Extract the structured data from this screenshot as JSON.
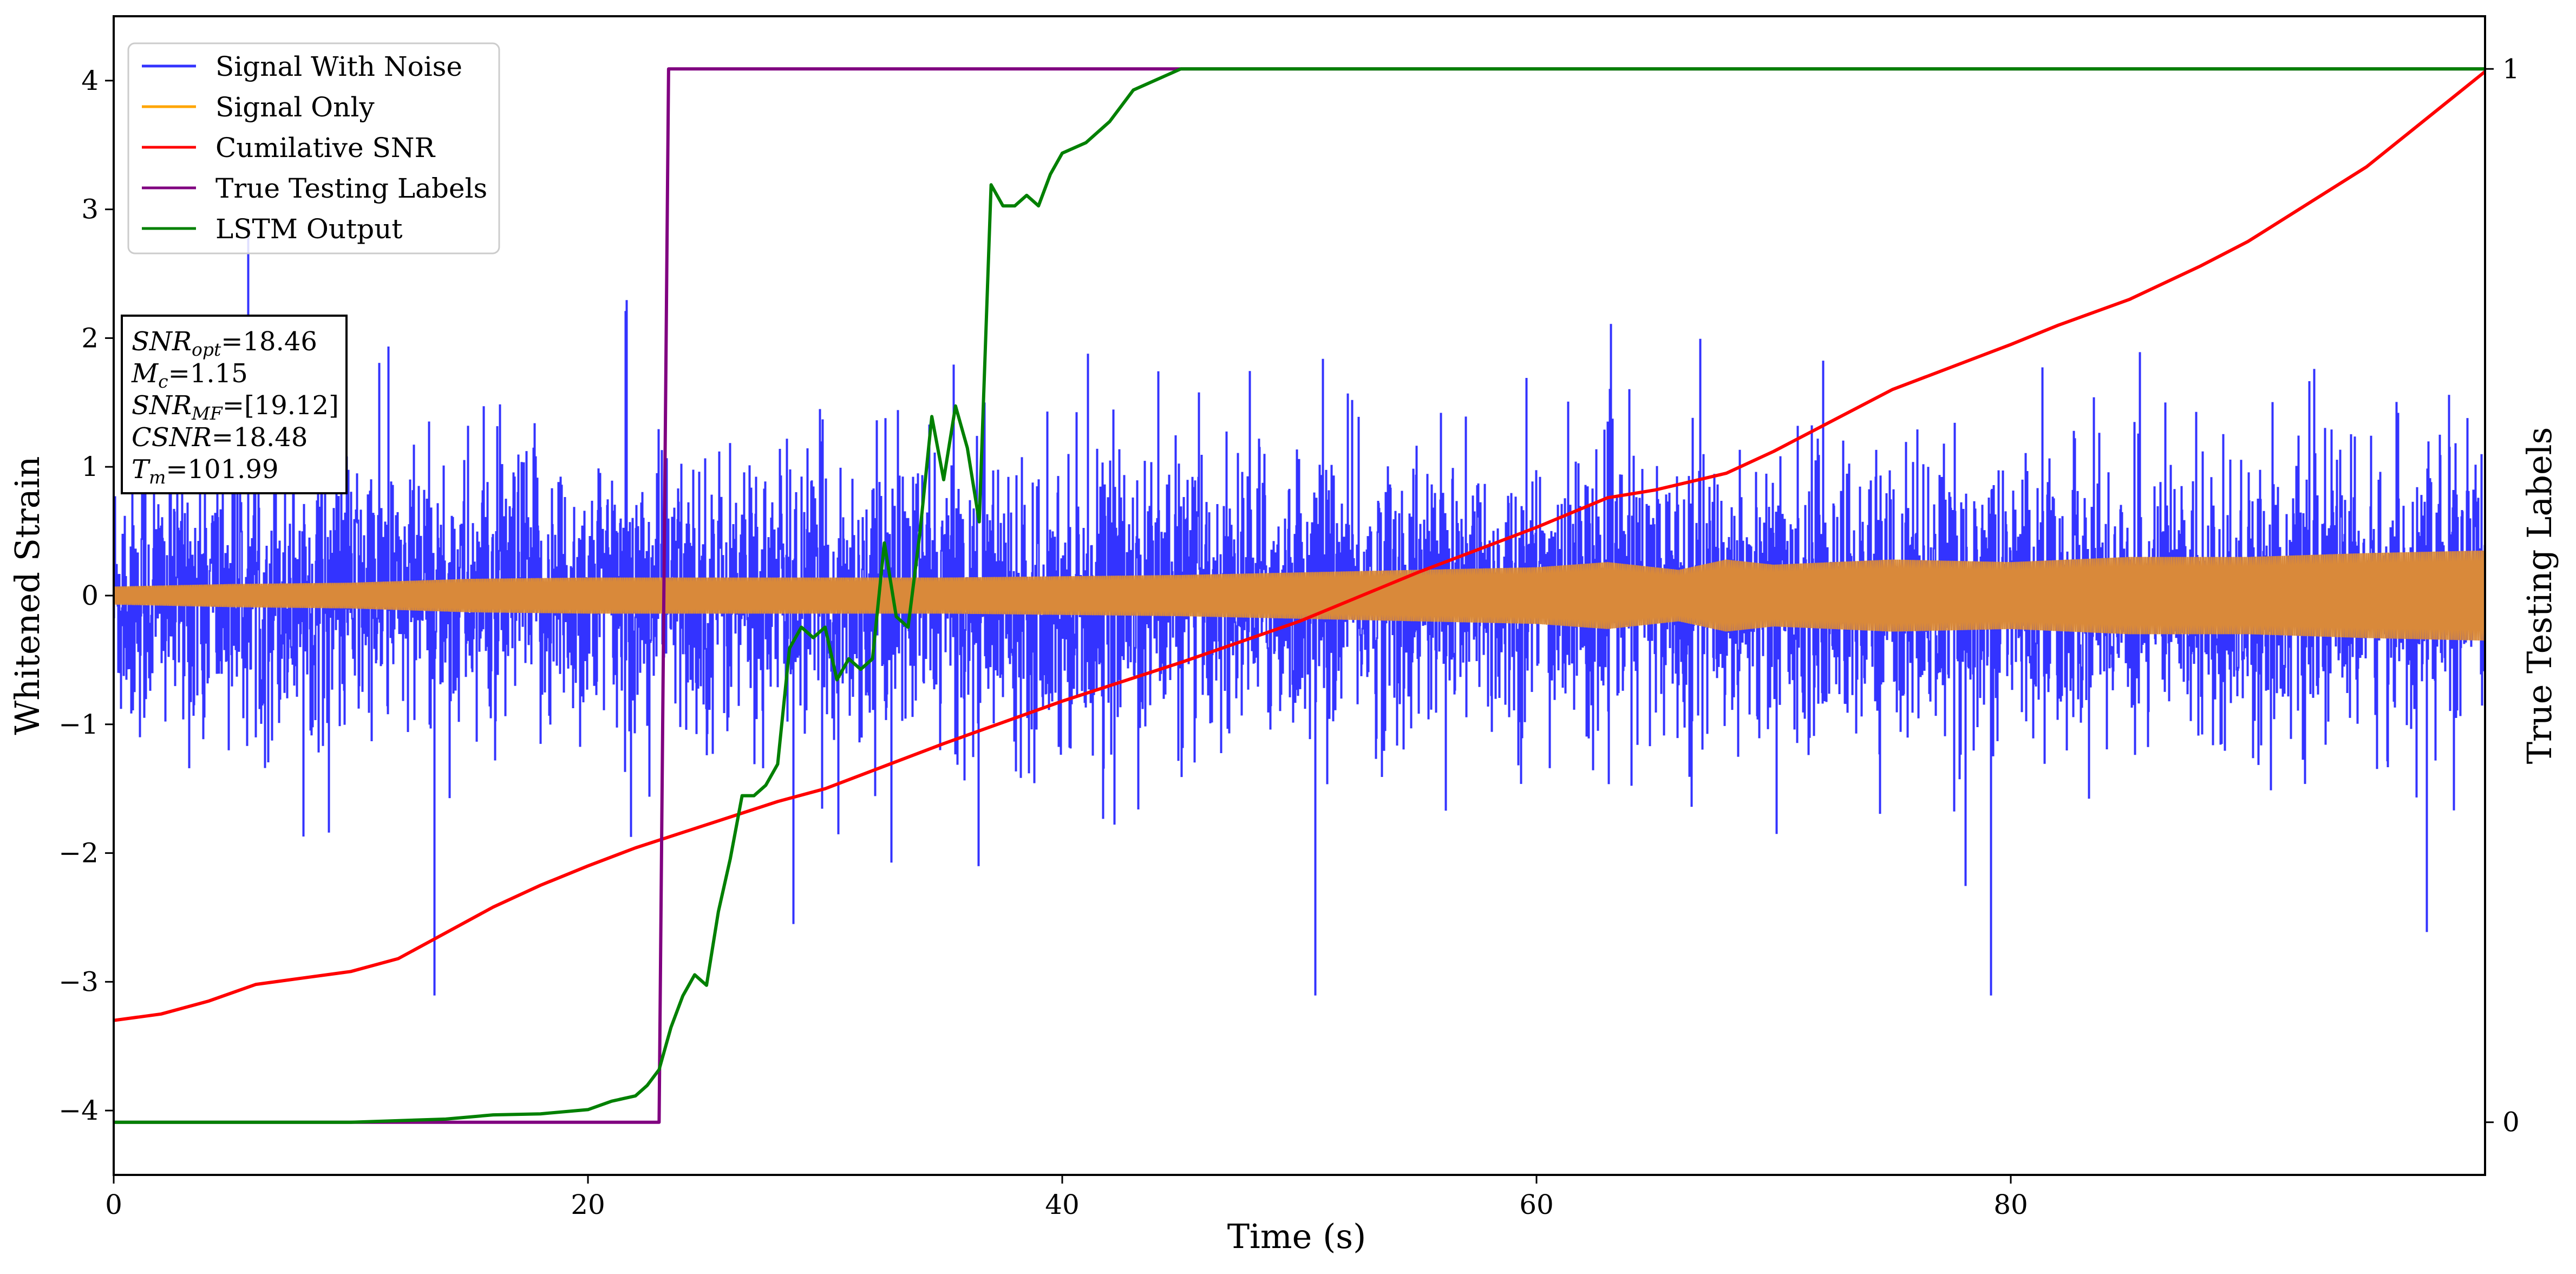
{
  "chart_data": {
    "type": "line",
    "xlabel": "Time (s)",
    "ylabel": "Whitened Strain",
    "y2label": "True Testing Labels",
    "xlim": [
      0,
      100
    ],
    "ylim": [
      -4.5,
      4.5
    ],
    "y2lim": [
      -0.05,
      1.05
    ],
    "xticks": [
      0,
      20,
      40,
      60,
      80
    ],
    "yticks": [
      -4,
      -3,
      -2,
      -1,
      0,
      1,
      2,
      3,
      4
    ],
    "y2ticks": [
      0,
      1
    ],
    "grid": false,
    "legend": {
      "placement": "top-left",
      "entries": [
        {
          "label": "Signal With Noise",
          "color": "#3333ff"
        },
        {
          "label": "Signal Only",
          "color": "#ffa500"
        },
        {
          "label": "Cumilative SNR",
          "color": "#ff0000"
        },
        {
          "label": "True Testing Labels",
          "color": "#800080"
        },
        {
          "label": "LSTM Output",
          "color": "#008000"
        }
      ]
    },
    "annotation": {
      "placement": "upper-left",
      "lines": [
        {
          "var": "SNR",
          "sub": "opt",
          "value": "=18.46"
        },
        {
          "var": "M",
          "sub": "c",
          "value": "=1.15"
        },
        {
          "var": "SNR",
          "sub": "MF",
          "value": "=[19.12]"
        },
        {
          "var": "CSNR",
          "sub": "",
          "value": "=18.48"
        },
        {
          "var": "T",
          "sub": "m",
          "value": "=101.99"
        }
      ]
    },
    "series": [
      {
        "name": "Signal With Noise",
        "axis": "left",
        "color": "#3333ff",
        "style": "dense-noise",
        "approx_std": 0.55,
        "approx_range": [
          -3.1,
          4.1
        ],
        "x_range": [
          0,
          100
        ]
      },
      {
        "name": "Signal Only",
        "axis": "left",
        "color": "#d9893a",
        "style": "envelope",
        "x": [
          0,
          5,
          10,
          15,
          20,
          25,
          30,
          35,
          40,
          45,
          50,
          55,
          60,
          63,
          66,
          68,
          70,
          75,
          80,
          85,
          90,
          95,
          100
        ],
        "envelope": [
          0.07,
          0.09,
          0.1,
          0.13,
          0.14,
          0.14,
          0.14,
          0.14,
          0.15,
          0.16,
          0.18,
          0.2,
          0.22,
          0.26,
          0.2,
          0.28,
          0.24,
          0.28,
          0.26,
          0.3,
          0.3,
          0.33,
          0.35
        ]
      },
      {
        "name": "Cumilative SNR",
        "axis": "left",
        "color": "#ff0000",
        "x": [
          0,
          2,
          4,
          6,
          8,
          10,
          12,
          14,
          16,
          18,
          20,
          22,
          25,
          28,
          30,
          35,
          40,
          45,
          50,
          55,
          60,
          63,
          65,
          68,
          70,
          75,
          80,
          82,
          85,
          88,
          90,
          95,
          100
        ],
        "y": [
          -3.3,
          -3.25,
          -3.15,
          -3.02,
          -2.97,
          -2.92,
          -2.82,
          -2.62,
          -2.42,
          -2.25,
          -2.1,
          -1.96,
          -1.78,
          -1.6,
          -1.5,
          -1.15,
          -0.82,
          -0.52,
          -0.2,
          0.18,
          0.53,
          0.76,
          0.82,
          0.95,
          1.12,
          1.6,
          1.95,
          2.1,
          2.3,
          2.56,
          2.75,
          3.33,
          4.07
        ]
      },
      {
        "name": "True Testing Labels",
        "axis": "right",
        "color": "#800080",
        "x": [
          0,
          23.0,
          23.4,
          100
        ],
        "y": [
          0,
          0,
          1,
          1
        ]
      },
      {
        "name": "LSTM Output",
        "axis": "right",
        "color": "#008000",
        "x": [
          0,
          10,
          14,
          16,
          18,
          20,
          21,
          22,
          22.5,
          23,
          23.5,
          24,
          24.5,
          25,
          25.5,
          26,
          26.5,
          27,
          27.5,
          28,
          28.5,
          29,
          29.5,
          30,
          30.5,
          31,
          31.5,
          32,
          32.5,
          33,
          33.5,
          34,
          34.5,
          35,
          35.5,
          36,
          36.5,
          37,
          37.5,
          38,
          38.5,
          39,
          39.5,
          40,
          41,
          42,
          43,
          44,
          45,
          46,
          47,
          48,
          49,
          50,
          100
        ],
        "y": [
          0.0,
          0.0,
          0.003,
          0.007,
          0.008,
          0.012,
          0.02,
          0.025,
          0.035,
          0.05,
          0.09,
          0.12,
          0.14,
          0.13,
          0.2,
          0.25,
          0.31,
          0.31,
          0.32,
          0.34,
          0.45,
          0.47,
          0.46,
          0.47,
          0.42,
          0.44,
          0.43,
          0.44,
          0.55,
          0.48,
          0.47,
          0.56,
          0.67,
          0.61,
          0.68,
          0.64,
          0.57,
          0.89,
          0.87,
          0.87,
          0.88,
          0.87,
          0.9,
          0.92,
          0.93,
          0.95,
          0.98,
          0.99,
          1.0,
          1.0,
          1.0,
          1.0,
          1.0,
          1.0,
          1.0
        ]
      }
    ]
  }
}
